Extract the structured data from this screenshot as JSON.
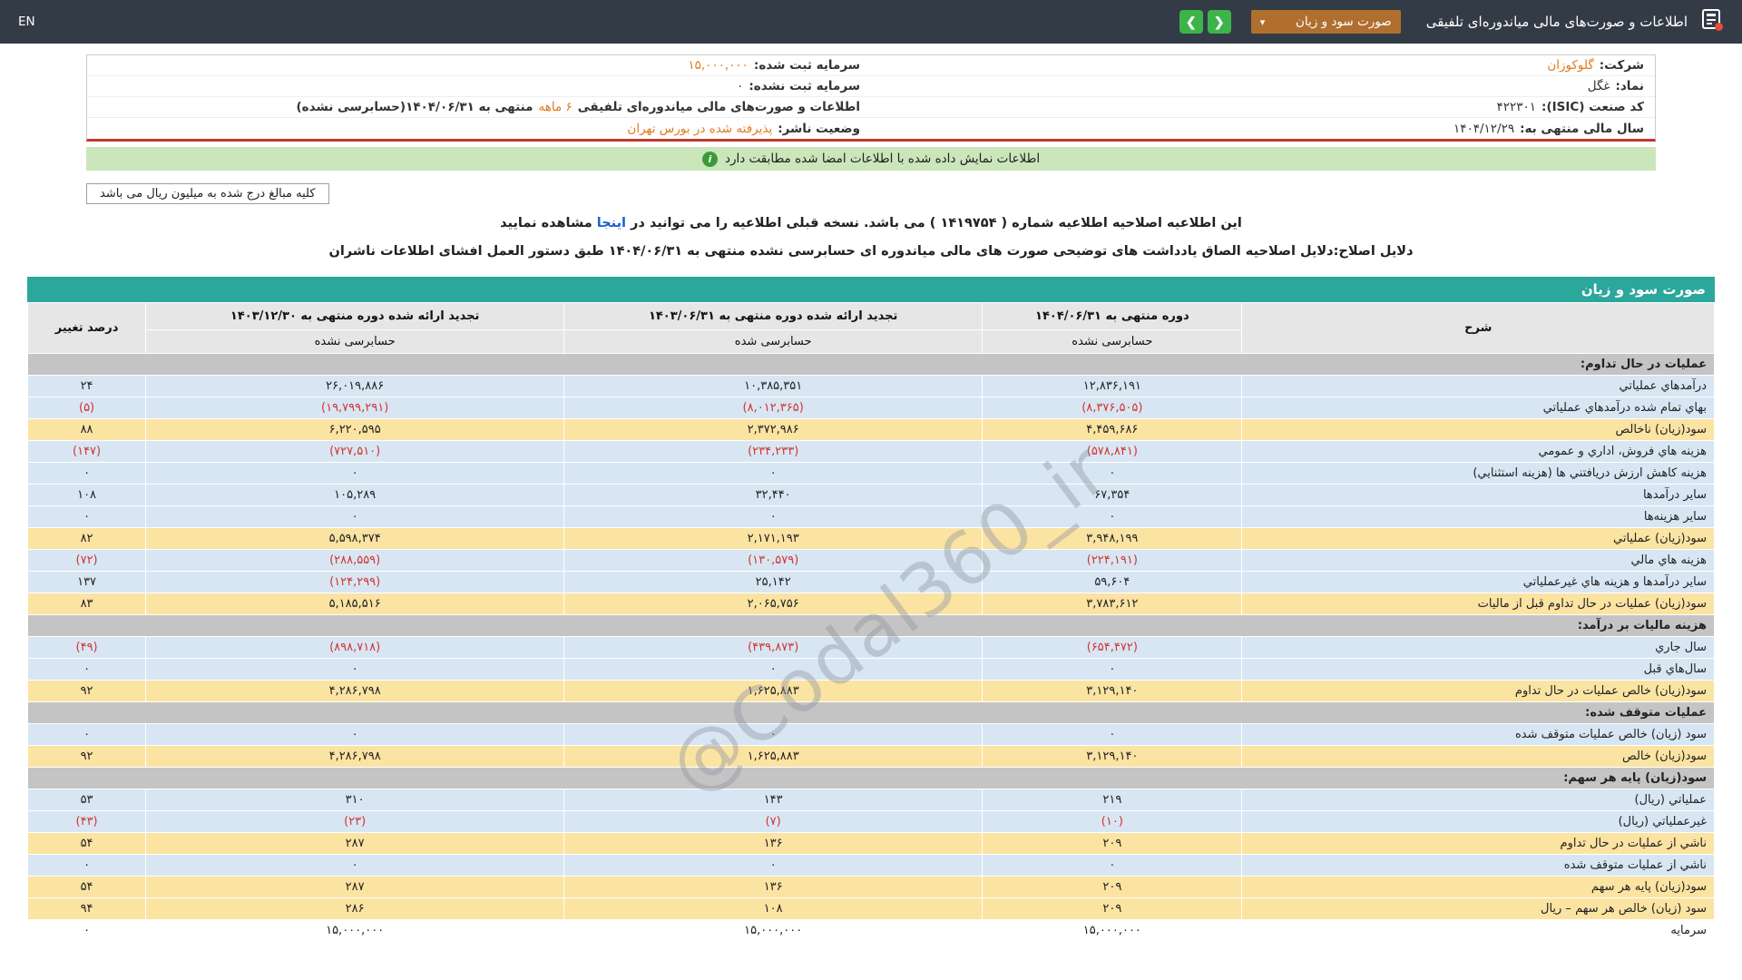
{
  "top_bar": {
    "title": "اطلاعات و صورت‌های مالی میاندوره‌ای تلفیقی",
    "sheet_dropdown_value": "صورت سود و زیان",
    "language_label": "EN",
    "icons": {
      "dropdown_caret": "▾",
      "nav_right": "❮",
      "nav_left": "❯",
      "info": "i"
    }
  },
  "company_info": {
    "right_column": [
      {
        "label": "شرکت:",
        "value": "گلوکوزان",
        "highlight": true
      },
      {
        "label": "نماد:",
        "value": "غگل",
        "highlight": false
      },
      {
        "label": "کد صنعت (ISIC):",
        "value": "۴۲۲۳۰۱",
        "highlight": false
      },
      {
        "label": "سال مالی منتهی به:",
        "value": "۱۴۰۴/۱۲/۲۹",
        "highlight": false
      }
    ],
    "left_column": [
      {
        "label": "سرمایه ثبت شده:",
        "value": "۱۵,۰۰۰,۰۰۰",
        "highlight": true
      },
      {
        "label": "سرمایه ثبت نشده:",
        "value": "۰",
        "highlight": false
      },
      {
        "label": "اطلاعات و صورت‌های مالی میاندوره‌ای تلفیقی",
        "value": "۶ ماهه",
        "suffix": "منتهی به ۱۴۰۴/۰۶/۳۱(حسابرسی نشده)",
        "highlight": true
      },
      {
        "label": "وضعیت ناشر:",
        "value": "پذیرفته شده در بورس تهران",
        "highlight": true
      }
    ]
  },
  "match_banner": {
    "text": "اطلاعات نمایش داده شده با اطلاعات امضا شده مطابقت دارد"
  },
  "unit_note": "کلیه مبالغ درج شده به میلیون ریال می باشد",
  "amendment": {
    "line1_before_link": "این اطلاعیه اصلاحیه اطلاعیه شماره ( ۱۴۱۹۷۵۴ ) می باشد. نسخه قبلی اطلاعیه را می توانید در",
    "line1_link": "اینجا",
    "line1_after_link": "مشاهده نمایید",
    "line2": "دلایل اصلاح:دلایل اصلاحیه الصاق یادداشت های توضیحی صورت های مالی میاندوره ای حسابرسی نشده منتهی به ۱۴۰۴/۰۶/۳۱ طبق دستور العمل افشای اطلاعات ناشران"
  },
  "watermark": "@Codal360_ir",
  "statement": {
    "title": "صورت سود و زیان",
    "columns": {
      "description": "شرح",
      "period_current": "دوره منتهی به ۱۴۰۴/۰۶/۳۱",
      "period_current_sub": "حسابرسی نشده",
      "period_restated_mid": "تجدید ارائه شده دوره منتهی به ۱۴۰۳/۰۶/۳۱",
      "period_restated_mid_sub": "حسابرسی شده",
      "period_restated_year": "تجدید ارائه شده دوره منتهی به ۱۴۰۳/۱۲/۳۰",
      "period_restated_year_sub": "حسابرسی نشده",
      "change_percent": "درصد تغییر"
    },
    "rows": [
      {
        "style": "section",
        "label": "عملیات در حال تداوم:"
      },
      {
        "style": "blue",
        "label": "درآمدهاي عملياتي",
        "v1": "۱۲,۸۳۶,۱۹۱",
        "v2": "۱۰,۳۸۵,۳۵۱",
        "v3": "۲۶,۰۱۹,۸۸۶",
        "chg": "۲۴"
      },
      {
        "style": "blue",
        "label": "بهاي تمام شده درآمدهاي عملياتي",
        "v1": "(۸,۳۷۶,۵۰۵)",
        "v2": "(۸,۰۱۲,۳۶۵)",
        "v3": "(۱۹,۷۹۹,۲۹۱)",
        "chg": "(۵)"
      },
      {
        "style": "yellow",
        "label": "سود(زيان) ناخالص",
        "v1": "۴,۴۵۹,۶۸۶",
        "v2": "۲,۳۷۲,۹۸۶",
        "v3": "۶,۲۲۰,۵۹۵",
        "chg": "۸۸"
      },
      {
        "style": "blue",
        "label": "هزينه هاي فروش، اداري و عمومي",
        "v1": "(۵۷۸,۸۴۱)",
        "v2": "(۲۳۴,۲۳۳)",
        "v3": "(۷۲۷,۵۱۰)",
        "chg": "(۱۴۷)"
      },
      {
        "style": "blue",
        "label": "هزينه کاهش ارزش دريافتني ها (هزينه استثنايي)",
        "v1": "۰",
        "v2": "۰",
        "v3": "۰",
        "chg": "۰"
      },
      {
        "style": "blue",
        "label": "ساير درآمدها",
        "v1": "۶۷,۳۵۴",
        "v2": "۳۲,۴۴۰",
        "v3": "۱۰۵,۲۸۹",
        "chg": "۱۰۸"
      },
      {
        "style": "blue",
        "label": "ساير هزينه‌ها",
        "v1": "۰",
        "v2": "۰",
        "v3": "۰",
        "chg": "۰"
      },
      {
        "style": "yellow",
        "label": "سود(زيان) عملياتي",
        "v1": "۳,۹۴۸,۱۹۹",
        "v2": "۲,۱۷۱,۱۹۳",
        "v3": "۵,۵۹۸,۳۷۴",
        "chg": "۸۲"
      },
      {
        "style": "blue",
        "label": "هزينه هاي مالي",
        "v1": "(۲۲۴,۱۹۱)",
        "v2": "(۱۳۰,۵۷۹)",
        "v3": "(۲۸۸,۵۵۹)",
        "chg": "(۷۲)"
      },
      {
        "style": "blue",
        "label": "ساير درآمدها و هزينه هاي غيرعملياتي",
        "v1": "۵۹,۶۰۴",
        "v2": "۲۵,۱۴۲",
        "v3": "(۱۲۴,۲۹۹)",
        "chg": "۱۳۷"
      },
      {
        "style": "yellow",
        "label": "سود(زيان) عمليات در حال تداوم قبل از ماليات",
        "v1": "۳,۷۸۳,۶۱۲",
        "v2": "۲,۰۶۵,۷۵۶",
        "v3": "۵,۱۸۵,۵۱۶",
        "chg": "۸۳"
      },
      {
        "style": "section",
        "label": "هزينه ماليات بر درآمد:"
      },
      {
        "style": "blue",
        "label": "سال جاري",
        "v1": "(۶۵۴,۴۷۲)",
        "v2": "(۴۳۹,۸۷۳)",
        "v3": "(۸۹۸,۷۱۸)",
        "chg": "(۴۹)"
      },
      {
        "style": "blue",
        "label": "سال‌هاي قبل",
        "v1": "۰",
        "v2": "۰",
        "v3": "۰",
        "chg": "۰"
      },
      {
        "style": "yellow",
        "label": "سود(زيان) خالص عمليات در حال تداوم",
        "v1": "۳,۱۲۹,۱۴۰",
        "v2": "۱,۶۲۵,۸۸۳",
        "v3": "۴,۲۸۶,۷۹۸",
        "chg": "۹۲"
      },
      {
        "style": "section",
        "label": "عمليات متوقف شده:"
      },
      {
        "style": "blue",
        "label": "سود (زيان) خالص عمليات متوقف شده",
        "v1": "۰",
        "v2": "۰",
        "v3": "۰",
        "chg": "۰"
      },
      {
        "style": "yellow",
        "label": "سود(زيان) خالص",
        "v1": "۳,۱۲۹,۱۴۰",
        "v2": "۱,۶۲۵,۸۸۳",
        "v3": "۴,۲۸۶,۷۹۸",
        "chg": "۹۲"
      },
      {
        "style": "section",
        "label": "سود(زيان) پايه هر سهم:"
      },
      {
        "style": "blue",
        "label": "عملياتي (ريال)",
        "v1": "۲۱۹",
        "v2": "۱۴۳",
        "v3": "۳۱۰",
        "chg": "۵۳"
      },
      {
        "style": "blue",
        "label": "غيرعملياتي (ريال)",
        "v1": "(۱۰)",
        "v2": "(۷)",
        "v3": "(۲۳)",
        "chg": "(۴۳)"
      },
      {
        "style": "yellow",
        "label": "ناشي از عمليات در حال تداوم",
        "v1": "۲۰۹",
        "v2": "۱۳۶",
        "v3": "۲۸۷",
        "chg": "۵۴"
      },
      {
        "style": "blue",
        "label": "ناشي از عمليات متوقف شده",
        "v1": "۰",
        "v2": "۰",
        "v3": "۰",
        "chg": "۰"
      },
      {
        "style": "yellow",
        "label": "سود(زيان) پايه هر سهم",
        "v1": "۲۰۹",
        "v2": "۱۳۶",
        "v3": "۲۸۷",
        "chg": "۵۴"
      },
      {
        "style": "yellow",
        "label": "سود (زيان) خالص هر سهم – ريال",
        "v1": "۲۰۹",
        "v2": "۱۰۸",
        "v3": "۲۸۶",
        "chg": "۹۴"
      },
      {
        "style": "white",
        "label": "سرمايه",
        "v1": "۱۵,۰۰۰,۰۰۰",
        "v2": "۱۵,۰۰۰,۰۰۰",
        "v3": "۱۵,۰۰۰,۰۰۰",
        "chg": "۰"
      }
    ]
  },
  "colors": {
    "topbar_bg": "#323B46",
    "teal_header": "#2BA79B",
    "dropdown_bg": "#B06F2E",
    "green_button": "#3CB44A",
    "banner_bg": "#CBE6BB",
    "row_blue": "#D8E6F3",
    "row_yellow": "#FBE3A2",
    "row_section": "#C4C4C4",
    "negative_text": "#D23430",
    "orange_text": "#E07B1F",
    "maroon_line": "#C0392B"
  }
}
